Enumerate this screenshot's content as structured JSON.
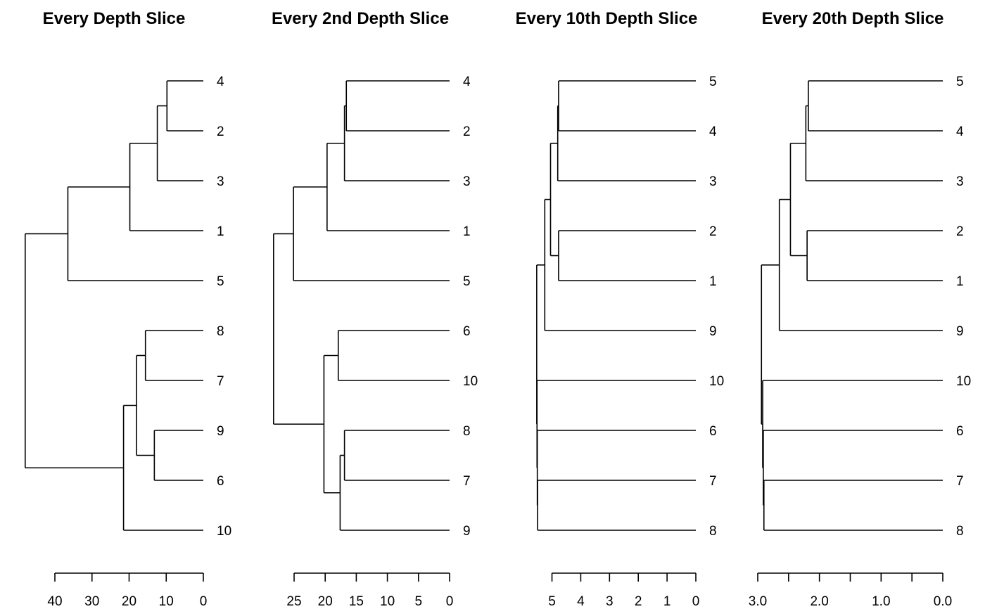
{
  "chart_data": [
    {
      "type": "dendrogram",
      "title": "Every Depth Slice",
      "orientation": "horizontal",
      "xlim": [
        40,
        0
      ],
      "ticks": [
        40,
        30,
        20,
        10,
        0
      ],
      "tick_labels": [
        "40",
        "30",
        "20",
        "10",
        "0"
      ],
      "leaf_order": [
        "4",
        "2",
        "3",
        "1",
        "5",
        "8",
        "7",
        "9",
        "6",
        "10"
      ],
      "merges": [
        {
          "a": "4",
          "b": "2",
          "height": 9.8
        },
        {
          "a": "8",
          "b": "7",
          "height": 15.6
        },
        {
          "a": "9",
          "b": "6",
          "height": 13.2
        },
        {
          "a": 0,
          "b": "3",
          "height": 12.4
        },
        {
          "a": 1,
          "b": 2,
          "height": 18.0
        },
        {
          "a": 3,
          "b": "1",
          "height": 19.8
        },
        {
          "a": 4,
          "b": "10",
          "height": 21.5
        },
        {
          "a": 5,
          "b": "5",
          "height": 36.5
        },
        {
          "a": 7,
          "b": 6,
          "height": 48.0
        }
      ]
    },
    {
      "type": "dendrogram",
      "title": "Every 2nd Depth Slice",
      "orientation": "horizontal",
      "xlim": [
        25,
        0
      ],
      "ticks": [
        25,
        20,
        15,
        10,
        5,
        0
      ],
      "tick_labels": [
        "25",
        "20",
        "15",
        "10",
        "5",
        "0"
      ],
      "leaf_order": [
        "4",
        "2",
        "3",
        "1",
        "5",
        "6",
        "10",
        "8",
        "7",
        "9"
      ],
      "merges": [
        {
          "a": "4",
          "b": "2",
          "height": 16.6
        },
        {
          "a": "8",
          "b": "7",
          "height": 16.9
        },
        {
          "a": 0,
          "b": "3",
          "height": 16.9
        },
        {
          "a": "6",
          "b": "10",
          "height": 17.9
        },
        {
          "a": 1,
          "b": "9",
          "height": 17.6
        },
        {
          "a": 2,
          "b": "1",
          "height": 19.7
        },
        {
          "a": 3,
          "b": 4,
          "height": 20.2
        },
        {
          "a": 5,
          "b": "5",
          "height": 25.1
        },
        {
          "a": 7,
          "b": 6,
          "height": 28.3
        }
      ]
    },
    {
      "type": "dendrogram",
      "title": "Every 10th Depth Slice",
      "orientation": "horizontal",
      "xlim": [
        5.6,
        0
      ],
      "ticks": [
        5,
        4,
        3,
        2,
        1,
        0
      ],
      "tick_labels": [
        "5",
        "4",
        "3",
        "2",
        "1",
        "0"
      ],
      "leaf_order": [
        "5",
        "4",
        "3",
        "2",
        "1",
        "9",
        "10",
        "6",
        "7",
        "8"
      ],
      "merges": [
        {
          "a": "5",
          "b": "4",
          "height": 4.77
        },
        {
          "a": "2",
          "b": "1",
          "height": 4.77
        },
        {
          "a": 0,
          "b": "3",
          "height": 4.8
        },
        {
          "a": 2,
          "b": 1,
          "height": 5.05
        },
        {
          "a": 3,
          "b": "9",
          "height": 5.25
        },
        {
          "a": "7",
          "b": "8",
          "height": 5.5
        },
        {
          "a": "6",
          "b": 5,
          "height": 5.51
        },
        {
          "a": "10",
          "b": 6,
          "height": 5.52
        },
        {
          "a": 4,
          "b": 7,
          "height": 5.53
        }
      ]
    },
    {
      "type": "dendrogram",
      "title": "Every 20th Depth Slice",
      "orientation": "horizontal",
      "xlim": [
        3.0,
        0
      ],
      "ticks": [
        3.0,
        2.5,
        2.0,
        1.5,
        1.0,
        0.5,
        0.0
      ],
      "tick_labels": [
        "3.0",
        "",
        "2.0",
        "",
        "1.0",
        "",
        "0.0"
      ],
      "leaf_order": [
        "5",
        "4",
        "3",
        "2",
        "1",
        "9",
        "10",
        "6",
        "7",
        "8"
      ],
      "merges": [
        {
          "a": "5",
          "b": "4",
          "height": 2.18
        },
        {
          "a": "2",
          "b": "1",
          "height": 2.2
        },
        {
          "a": 0,
          "b": "3",
          "height": 2.22
        },
        {
          "a": 2,
          "b": 1,
          "height": 2.47
        },
        {
          "a": 3,
          "b": "9",
          "height": 2.65
        },
        {
          "a": "7",
          "b": "8",
          "height": 2.9
        },
        {
          "a": "6",
          "b": 5,
          "height": 2.91
        },
        {
          "a": "10",
          "b": 6,
          "height": 2.92
        },
        {
          "a": 4,
          "b": 7,
          "height": 2.94
        }
      ]
    }
  ]
}
